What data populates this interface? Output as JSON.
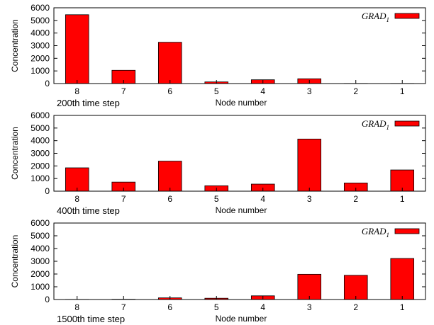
{
  "chart_data": [
    {
      "type": "bar",
      "categories": [
        "8",
        "7",
        "6",
        "5",
        "4",
        "3",
        "2",
        "1"
      ],
      "series": [
        {
          "name": "GRAD",
          "name_subscript": "1",
          "values": [
            5450,
            1050,
            3270,
            130,
            300,
            380,
            10,
            10
          ]
        }
      ],
      "ylabel": "Concentration",
      "xlabel": "Node number",
      "caption": "200th time step",
      "ylim": [
        0,
        6000
      ],
      "yticks": [
        "0",
        "1000",
        "2000",
        "3000",
        "4000",
        "5000",
        "6000"
      ],
      "legend_position": "top-right",
      "bar_color": "#ff0000"
    },
    {
      "type": "bar",
      "categories": [
        "8",
        "7",
        "6",
        "5",
        "4",
        "3",
        "2",
        "1"
      ],
      "series": [
        {
          "name": "GRAD",
          "name_subscript": "1",
          "values": [
            1850,
            720,
            2380,
            430,
            560,
            4130,
            650,
            1680
          ]
        }
      ],
      "ylabel": "Concentration",
      "xlabel": "Node number",
      "caption": "400th time step",
      "ylim": [
        0,
        6000
      ],
      "yticks": [
        "0",
        "1000",
        "2000",
        "3000",
        "4000",
        "5000",
        "6000"
      ],
      "legend_position": "top-right",
      "bar_color": "#ff0000"
    },
    {
      "type": "bar",
      "categories": [
        "8",
        "7",
        "6",
        "5",
        "4",
        "3",
        "2",
        "1"
      ],
      "series": [
        {
          "name": "GRAD",
          "name_subscript": "1",
          "values": [
            10,
            20,
            130,
            100,
            290,
            1980,
            1900,
            3220
          ]
        }
      ],
      "ylabel": "Concentration",
      "xlabel": "Node number",
      "caption": "1500th time step",
      "ylim": [
        0,
        6000
      ],
      "yticks": [
        "0",
        "1000",
        "2000",
        "3000",
        "4000",
        "5000",
        "6000"
      ],
      "legend_position": "top-right",
      "bar_color": "#ff0000"
    }
  ]
}
